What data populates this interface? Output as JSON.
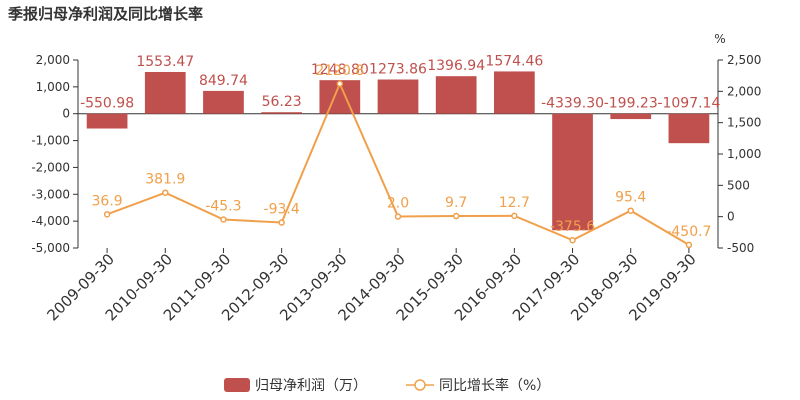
{
  "colors": {
    "bar": "#c0504d",
    "line": "#f0a04b",
    "axis": "#333333",
    "grid": "#cccccc"
  },
  "chart_data": {
    "type": "bar+line",
    "title": "季报归母净利润及同比增长率",
    "categories": [
      "2009-09-30",
      "2010-09-30",
      "2011-09-30",
      "2012-09-30",
      "2013-09-30",
      "2014-09-30",
      "2015-09-30",
      "2016-09-30",
      "2017-09-30",
      "2018-09-30",
      "2019-09-30"
    ],
    "series": [
      {
        "name": "归母净利润（万）",
        "type": "bar",
        "axis": "left",
        "values": [
          -550.98,
          1553.47,
          849.74,
          56.23,
          1248.8,
          1273.86,
          1396.94,
          1574.46,
          -4339.3,
          -199.23,
          -1097.14
        ],
        "labels": [
          "-550.98",
          "1553.47",
          "849.74",
          "56.23",
          "1248.80",
          "1273.86",
          "1396.94",
          "1574.46",
          "-4339.30",
          "-199.23",
          "-1097.14"
        ]
      },
      {
        "name": "同比增长率（%）",
        "type": "line",
        "axis": "right",
        "values": [
          36.9,
          381.9,
          -45.3,
          -93.4,
          2120.8,
          2.0,
          9.7,
          12.7,
          -375.6,
          95.4,
          -450.7
        ],
        "labels": [
          "36.9",
          "381.9",
          "-45.3",
          "-93.4",
          "2120.8",
          "2.0",
          "9.7",
          "12.7",
          "-375.6",
          "95.4",
          "-450.7"
        ]
      }
    ],
    "left_axis": {
      "min": -5000,
      "max": 2000,
      "ticks": [
        2000,
        1000,
        0,
        -1000,
        -2000,
        -3000,
        -4000,
        -5000
      ],
      "tick_labels": [
        "2,000",
        "1,000",
        "0",
        "-1,000",
        "-2,000",
        "-3,000",
        "-4,000",
        "-5,000"
      ]
    },
    "right_axis": {
      "unit": "%",
      "min": -500,
      "max": 2500,
      "ticks": [
        2500,
        2000,
        1500,
        1000,
        500,
        0,
        -500
      ],
      "tick_labels": [
        "2,500",
        "2,000",
        "1,500",
        "1,000",
        "500",
        "0",
        "-500"
      ]
    },
    "legend": {
      "position": "bottom-center",
      "items": [
        "归母净利润（万）",
        "同比增长率（%）"
      ]
    },
    "grid": false
  }
}
